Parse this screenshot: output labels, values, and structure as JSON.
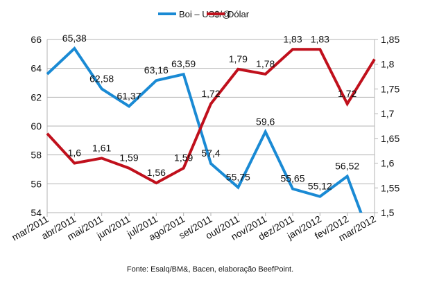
{
  "chart_data": {
    "type": "line",
    "title": "",
    "categories": [
      "mar/2011",
      "abr/2011",
      "mai/2011",
      "jun/2011",
      "jul/2011",
      "ago/2011",
      "set/2011",
      "out/2011",
      "nov/2011",
      "dez/2011",
      "jan/2012",
      "fev/2012",
      "mar/2012"
    ],
    "series": [
      {
        "name": "Boi – US$/@",
        "axis": "left",
        "color": "#1a8ad4",
        "values": [
          63.6,
          65.38,
          62.58,
          61.37,
          63.16,
          63.59,
          57.4,
          55.75,
          59.6,
          55.65,
          55.12,
          56.52,
          51.5
        ],
        "labels": [
          "",
          "65,38",
          "62,58",
          "61,37",
          "63,16",
          "63,59",
          "57,4",
          "55,75",
          "59,6",
          "55,65",
          "55,12",
          "56,52",
          ""
        ]
      },
      {
        "name": "Dólar",
        "axis": "right",
        "color": "#c0101c",
        "values": [
          1.66,
          1.6,
          1.61,
          1.59,
          1.56,
          1.59,
          1.72,
          1.79,
          1.78,
          1.83,
          1.83,
          1.72,
          1.81
        ],
        "labels": [
          "",
          "1,6",
          "1,61",
          "1,59",
          "1,56",
          "1,59",
          "1,72",
          "1,79",
          "1,78",
          "1,83",
          "1,83",
          "1,72",
          ""
        ]
      }
    ],
    "y_left": {
      "range": [
        54,
        66
      ],
      "ticks": [
        "54",
        "56",
        "58",
        "60",
        "62",
        "64",
        "66"
      ]
    },
    "y_right": {
      "range": [
        1.5,
        1.85
      ],
      "ticks": [
        "1,5",
        "1,55",
        "1,6",
        "1,65",
        "1,7",
        "1,75",
        "1,8",
        "1,85"
      ]
    },
    "grid": true,
    "legend": "top-center",
    "source": "Fonte: Esalq/BM&, Bacen, elaboração BeefPoint."
  }
}
